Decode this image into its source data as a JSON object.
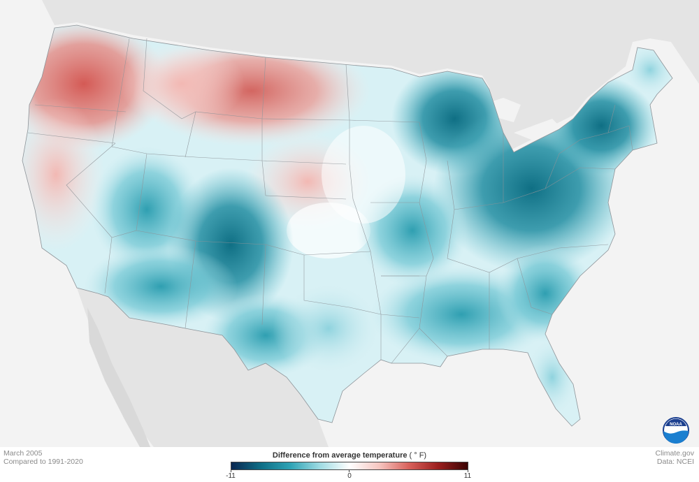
{
  "map": {
    "region": "Contiguous United States",
    "colors": {
      "background_land": "#e6e6e6",
      "ocean": "#f3f3f3",
      "state_border": "#9aa0a6",
      "warm": "#d9625c",
      "warm_light": "#f4c4c0",
      "neutral": "#ffffff",
      "cool_light": "#bfe6ec",
      "cool": "#2f9cae",
      "cool_dark": "#0f6f84"
    }
  },
  "caption": {
    "date": "March 2005",
    "baseline": "Compared to 1991-2020",
    "credit": "Climate.gov",
    "data_source": "Data: NCEI"
  },
  "legend": {
    "title_bold": "Difference from average temperature",
    "title_unit": "(  ° F)",
    "min_label": "-11",
    "mid_label": "0",
    "max_label": "11",
    "min": -11,
    "max": 11,
    "stops": [
      "#0a2751",
      "#0e6e86",
      "#2fa3b5",
      "#9fdbe3",
      "#ffffff",
      "#f6c6c1",
      "#d9625c",
      "#9b1f1e",
      "#3a0303"
    ]
  },
  "logo": {
    "icon": "noaa-logo-icon",
    "text": "NOAA"
  }
}
